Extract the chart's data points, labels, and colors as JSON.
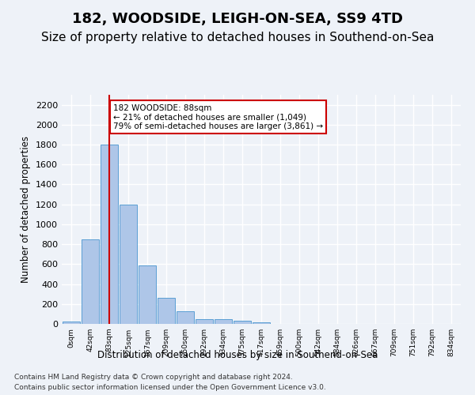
{
  "title1": "182, WOODSIDE, LEIGH-ON-SEA, SS9 4TD",
  "title2": "Size of property relative to detached houses in Southend-on-Sea",
  "xlabel": "Distribution of detached houses by size in Southend-on-Sea",
  "ylabel": "Number of detached properties",
  "footer1": "Contains HM Land Registry data © Crown copyright and database right 2024.",
  "footer2": "Contains public sector information licensed under the Open Government Licence v3.0.",
  "bar_values": [
    25,
    845,
    1800,
    1200,
    590,
    260,
    130,
    50,
    45,
    35,
    15,
    0,
    0,
    0,
    0,
    0,
    0,
    0,
    0,
    0,
    0
  ],
  "bar_labels": [
    "0sqm",
    "42sqm",
    "83sqm",
    "125sqm",
    "167sqm",
    "209sqm",
    "250sqm",
    "292sqm",
    "334sqm",
    "375sqm",
    "417sqm",
    "459sqm",
    "500sqm",
    "542sqm",
    "584sqm",
    "626sqm",
    "667sqm",
    "709sqm",
    "751sqm",
    "792sqm",
    "834sqm"
  ],
  "bar_color": "#aec6e8",
  "bar_edge_color": "#5a9fd4",
  "annotation_text": "182 WOODSIDE: 88sqm\n← 21% of detached houses are smaller (1,049)\n79% of semi-detached houses are larger (3,861) →",
  "vline_x": 2,
  "vline_color": "#cc0000",
  "annotation_box_color": "#ffffff",
  "annotation_box_edge": "#cc0000",
  "ylim": [
    0,
    2300
  ],
  "yticks": [
    0,
    200,
    400,
    600,
    800,
    1000,
    1200,
    1400,
    1600,
    1800,
    2000,
    2200
  ],
  "background_color": "#eef2f8",
  "plot_background": "#eef2f8",
  "grid_color": "#ffffff",
  "title1_fontsize": 13,
  "title2_fontsize": 11
}
